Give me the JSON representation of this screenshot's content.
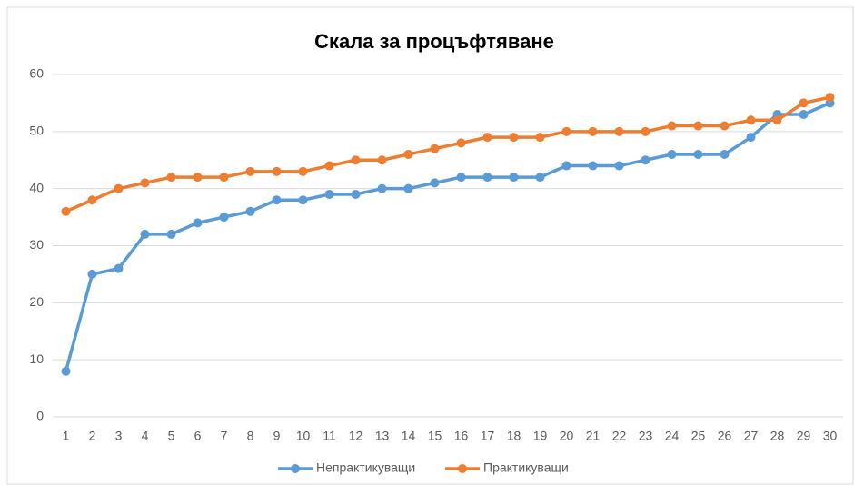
{
  "chart_data": {
    "type": "line",
    "title": "Скала за процъфтяване",
    "categories": [
      "1",
      "2",
      "3",
      "4",
      "5",
      "6",
      "7",
      "8",
      "9",
      "10",
      "11",
      "12",
      "13",
      "14",
      "15",
      "16",
      "17",
      "18",
      "19",
      "20",
      "21",
      "22",
      "23",
      "24",
      "25",
      "26",
      "27",
      "28",
      "29",
      "30"
    ],
    "series": [
      {
        "name": "Непрактикуващи",
        "color": "#5b9bd5",
        "values": [
          8,
          25,
          26,
          32,
          32,
          34,
          35,
          36,
          38,
          38,
          39,
          39,
          40,
          40,
          41,
          42,
          42,
          42,
          42,
          44,
          44,
          44,
          45,
          46,
          46,
          46,
          49,
          53,
          53,
          55
        ]
      },
      {
        "name": "Практикуващи",
        "color": "#ed7d31",
        "values": [
          36,
          38,
          40,
          41,
          42,
          42,
          42,
          43,
          43,
          43,
          44,
          45,
          45,
          46,
          47,
          48,
          49,
          49,
          49,
          50,
          50,
          50,
          50,
          51,
          51,
          51,
          52,
          52,
          55,
          56
        ]
      }
    ],
    "ylim": [
      0,
      60
    ],
    "yticks": [
      0,
      10,
      20,
      30,
      40,
      50,
      60
    ],
    "grid": true,
    "legend": "bottom"
  }
}
